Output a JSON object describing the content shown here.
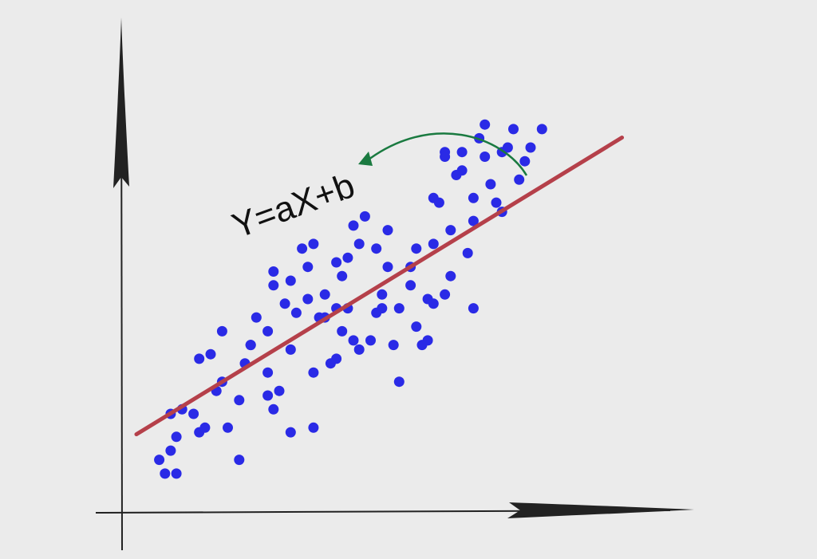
{
  "equation": "Y=aX+b",
  "colors": {
    "background": "#ebebeb",
    "axis": "#222222",
    "points": "#2a2ae6",
    "regression_line": "#b5404a",
    "annotation_arrow": "#1a7a40",
    "equation_text": "#111111"
  },
  "chart_data": {
    "type": "scatter",
    "xlim": [
      0,
      100
    ],
    "ylim": [
      0,
      100
    ],
    "grid": false,
    "axes_ticks": false,
    "regression": {
      "slope": 0.76,
      "intercept": 12
    },
    "series": [
      {
        "x": [
          10,
          11,
          13,
          12,
          12,
          14,
          13,
          16,
          17,
          18,
          20,
          17,
          19,
          21,
          21,
          22,
          24,
          24,
          25,
          26,
          26,
          27,
          29,
          30,
          29,
          29,
          30,
          30,
          31,
          32,
          33,
          33,
          33,
          34,
          35,
          36,
          36,
          37,
          38,
          37,
          37,
          39,
          39,
          40,
          41,
          41,
          41,
          42,
          42,
          43,
          43,
          44,
          44,
          45,
          45,
          46,
          47,
          48,
          48,
          49,
          49,
          50,
          50,
          51,
          52,
          52,
          54,
          54,
          55,
          55,
          56,
          57,
          57,
          58,
          58,
          58,
          59,
          60,
          60,
          60,
          61,
          61,
          62,
          63,
          63,
          64,
          65,
          65,
          65,
          66,
          67,
          67,
          68,
          69,
          70,
          70,
          71,
          72,
          73,
          74,
          75,
          77
        ],
        "y": [
          11,
          8,
          8,
          13,
          21,
          22,
          16,
          21,
          17,
          18,
          26,
          33,
          34,
          39,
          28,
          18,
          11,
          24,
          32,
          36,
          36,
          42,
          25,
          22,
          30,
          39,
          49,
          52,
          26,
          45,
          17,
          50,
          35,
          43,
          57,
          53,
          46,
          18,
          42,
          30,
          58,
          42,
          47,
          32,
          33,
          44,
          54,
          39,
          51,
          55,
          44,
          62,
          37,
          58,
          35,
          64,
          37,
          43,
          57,
          44,
          47,
          61,
          53,
          36,
          44,
          28,
          53,
          49,
          40,
          57,
          36,
          46,
          37,
          58,
          68,
          45,
          67,
          78,
          77,
          47,
          61,
          51,
          73,
          74,
          78,
          56,
          44,
          63,
          68,
          81,
          84,
          77,
          71,
          67,
          78,
          65,
          79,
          83,
          72,
          76,
          79,
          83
        ]
      }
    ]
  }
}
